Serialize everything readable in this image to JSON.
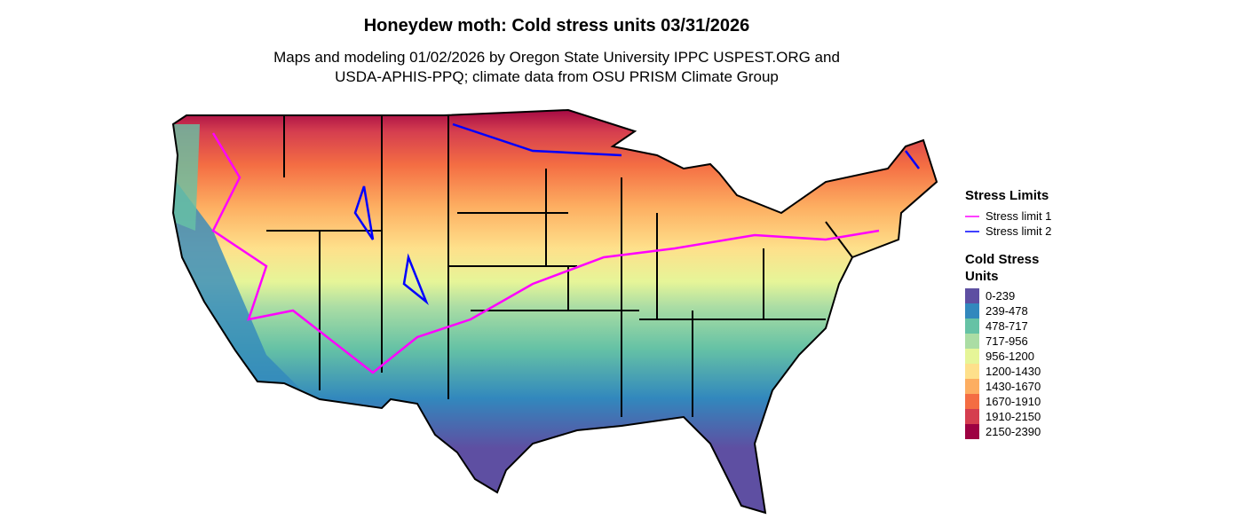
{
  "title": "Honeydew moth: Cold stress units 03/31/2026",
  "subtitle": [
    "Maps and modeling 01/02/2026 by Oregon State University IPPC USPEST.ORG and",
    "USDA-APHIS-PPQ; climate data from OSU PRISM Climate Group"
  ],
  "stress_legend": {
    "title": "Stress Limits",
    "items": [
      {
        "name": "Stress limit 1",
        "color": "#ff00ff"
      },
      {
        "name": "Stress limit 2",
        "color": "#0000ff"
      }
    ]
  },
  "units_legend": {
    "title": "Cold Stress Units",
    "items": [
      {
        "label": "0-239",
        "color": "#5e4fa2"
      },
      {
        "label": "239-478",
        "color": "#3288bd"
      },
      {
        "label": "478-717",
        "color": "#66c2a5"
      },
      {
        "label": "717-956",
        "color": "#abdda4"
      },
      {
        "label": "956-1200",
        "color": "#e6f598"
      },
      {
        "label": "1200-1430",
        "color": "#fee08b"
      },
      {
        "label": "1430-1670",
        "color": "#fdae61"
      },
      {
        "label": "1670-1910",
        "color": "#f46d43"
      },
      {
        "label": "1910-2150",
        "color": "#d53e4f"
      },
      {
        "label": "2150-2390",
        "color": "#9e0142"
      }
    ]
  }
}
